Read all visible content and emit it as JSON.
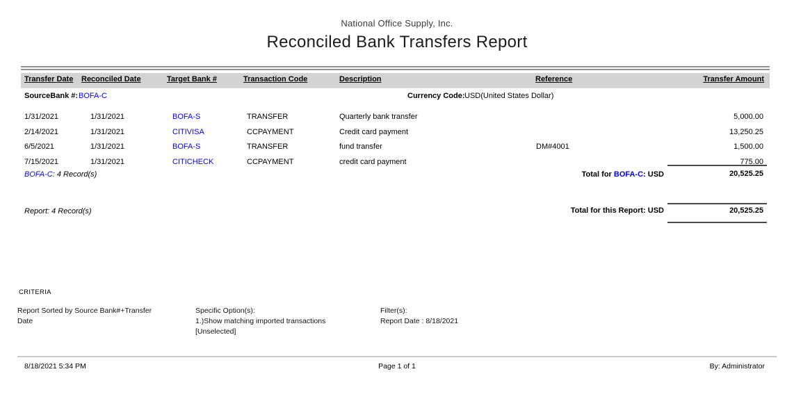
{
  "report": {
    "company": "National Office Supply, Inc.",
    "title": "Reconciled Bank Transfers Report",
    "columns": {
      "transfer_date": "Transfer Date",
      "reconciled_date": "Reconciled Date",
      "target_bank": "Target Bank #",
      "transaction_code": "Transaction Code",
      "description": "Description",
      "reference": "Reference",
      "transfer_amount": "Transfer Amount"
    },
    "group_header": {
      "source_bank_label": "SourceBank #:",
      "source_bank_value": "BOFA-C",
      "currency_label": "Currency Code:",
      "currency_value": "USD(United States Dollar)"
    },
    "rows": [
      {
        "transfer_date": "1/31/2021",
        "reconciled_date": "1/31/2021",
        "target_bank": "BOFA-S",
        "transaction_code": "TRANSFER",
        "description": "Quarterly bank transfer",
        "reference": "",
        "amount": "5,000.00"
      },
      {
        "transfer_date": "2/14/2021",
        "reconciled_date": "1/31/2021",
        "target_bank": "CITIVISA",
        "transaction_code": "CCPAYMENT",
        "description": "Credit card payment",
        "reference": "",
        "amount": "13,250.25"
      },
      {
        "transfer_date": "6/5/2021",
        "reconciled_date": "1/31/2021",
        "target_bank": "BOFA-S",
        "transaction_code": "TRANSFER",
        "description": "fund transfer",
        "reference": "DM#4001",
        "amount": "1,500.00"
      },
      {
        "transfer_date": "7/15/2021",
        "reconciled_date": "1/31/2021",
        "target_bank": "CITICHECK",
        "transaction_code": "CCPAYMENT",
        "description": "credit card payment",
        "reference": "",
        "amount": "775.00"
      }
    ],
    "group_footer": {
      "record_bank": "BOFA-C",
      "record_rest": ": 4 Record(s)",
      "total_prefix": "Total for ",
      "total_bank": "BOFA-C",
      "total_suffix": ": USD",
      "total_amount": "20,525.25"
    },
    "report_footer": {
      "record_count": "Report: 4 Record(s)",
      "total_label": "Total for this Report: USD",
      "total_amount": "20,525.25"
    },
    "criteria": {
      "heading": "CRITERIA",
      "sort_text": "Report Sorted by Source Bank#+Transfer Date",
      "options_label": "Specific Option(s):",
      "options_line1": "1.)Show matching imported transactions",
      "options_line2": "[Unselected]",
      "filters_label": "Filter(s):",
      "filters_line1": "Report Date : 8/18/2021"
    },
    "page_footer": {
      "datetime": "8/18/2021 5:34 PM",
      "page": "Page 1 of 1",
      "by": "By: Administrator"
    },
    "colors": {
      "link_blue": "#0000ff",
      "header_band": "#d3d3d3"
    }
  }
}
